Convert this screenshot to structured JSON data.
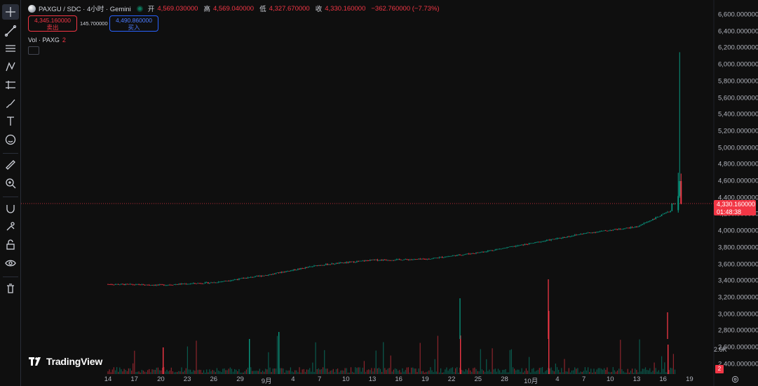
{
  "toolbar": {
    "tools": [
      {
        "name": "crosshair-icon",
        "active": true
      },
      {
        "name": "trend-line-icon"
      },
      {
        "name": "fib-retracement-icon"
      },
      {
        "name": "pattern-icon"
      },
      {
        "name": "forecast-icon"
      },
      {
        "name": "brush-icon"
      },
      {
        "name": "text-icon"
      },
      {
        "name": "emoji-icon"
      },
      {
        "name": "ruler-icon"
      },
      {
        "name": "zoom-in-icon"
      },
      {
        "name": "magnet-icon"
      },
      {
        "name": "lock-drawings-icon"
      },
      {
        "name": "unlock-icon"
      },
      {
        "name": "eye-icon"
      },
      {
        "name": "trash-icon"
      }
    ]
  },
  "legend": {
    "symbol": "PAXGU / SDC · 4小时 · Gemini",
    "open_label": "开",
    "open_value": "4,569.030000",
    "high_label": "高",
    "high_value": "4,569.040000",
    "low_label": "低",
    "low_value": "4,327.670000",
    "close_label": "收",
    "close_value": "4,330.160000",
    "change": "−362.760000 (−7.73%)"
  },
  "trade": {
    "sell_price": "4,345.160000",
    "sell_label": "卖出",
    "spread": "145.700000",
    "buy_price": "4,490.860000",
    "buy_label": "买入"
  },
  "volume_legend": {
    "label": "Vol · PAXG",
    "value": "2"
  },
  "price_axis": {
    "labels": [
      "6,600.000000",
      "6,400.000000",
      "6,200.000000",
      "6,000.000000",
      "5,800.000000",
      "5,600.000000",
      "5,400.000000",
      "5,200.000000",
      "5,000.000000",
      "4,800.000000",
      "4,600.000000",
      "4,400.000000",
      "4,200.000000",
      "4,000.000000",
      "3,800.000000",
      "3,600.000000",
      "3,400.000000",
      "3,200.000000",
      "3,000.000000",
      "2,800.000000",
      "2,600.000000",
      "2,400.000000"
    ],
    "current_price": "4,330.160000",
    "countdown": "01:48:38",
    "volume_max_label": "2.6K",
    "volume_badge": "2"
  },
  "time_axis": [
    "14",
    "17",
    "20",
    "23",
    "26",
    "29",
    "9月",
    "4",
    "7",
    "10",
    "13",
    "16",
    "19",
    "22",
    "25",
    "28",
    "10月",
    "4",
    "7",
    "10",
    "13",
    "16",
    "19"
  ],
  "colors": {
    "up": "#089981",
    "down": "#f23645",
    "accent": "#2962ff",
    "background": "#0f0f0f"
  },
  "branding": "TradingView",
  "chart_data": {
    "type": "candlestick",
    "interval": "4h",
    "price_range": [
      2400,
      6600
    ],
    "price_path": [
      {
        "date": "08-14",
        "price": 3360
      },
      {
        "date": "08-20",
        "price": 3350
      },
      {
        "date": "08-26",
        "price": 3380
      },
      {
        "date": "09-01",
        "price": 3470
      },
      {
        "date": "09-07",
        "price": 3590
      },
      {
        "date": "09-13",
        "price": 3650
      },
      {
        "date": "09-19",
        "price": 3660
      },
      {
        "date": "09-25",
        "price": 3740
      },
      {
        "date": "10-01",
        "price": 3850
      },
      {
        "date": "10-07",
        "price": 3970
      },
      {
        "date": "10-13",
        "price": 4050
      },
      {
        "date": "10-17",
        "price": 4250
      },
      {
        "date": "10-17",
        "price": 6150,
        "note": "spike high"
      },
      {
        "date": "10-17",
        "price": 4330
      }
    ],
    "last_price": 4330.16
  }
}
